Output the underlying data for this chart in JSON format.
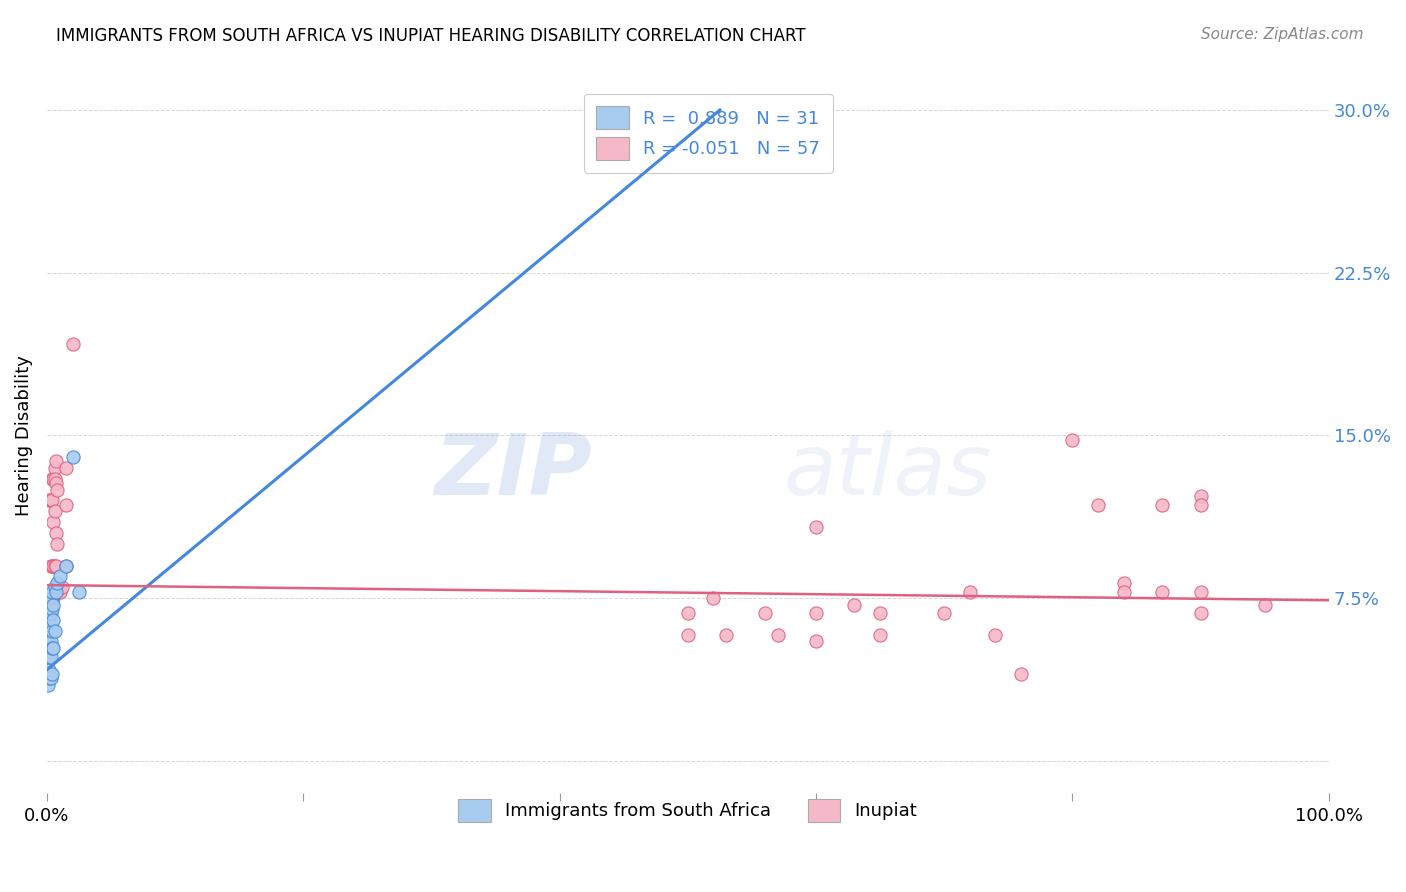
{
  "title": "IMMIGRANTS FROM SOUTH AFRICA VS INUPIAT HEARING DISABILITY CORRELATION CHART",
  "source": "Source: ZipAtlas.com",
  "ylabel": "Hearing Disability",
  "yticks": [
    0.0,
    0.075,
    0.15,
    0.225,
    0.3
  ],
  "ytick_labels": [
    "",
    "7.5%",
    "15.0%",
    "22.5%",
    "30.0%"
  ],
  "xlim": [
    0.0,
    1.0
  ],
  "ylim": [
    -0.015,
    0.315
  ],
  "legend_r1_black": "R = ",
  "legend_r1_blue": "0.889",
  "legend_r1_n": "  N = ",
  "legend_r1_nval": "31",
  "legend_r2_black": "R = ",
  "legend_r2_blue": "-0.051",
  "legend_r2_n": "  N = ",
  "legend_r2_nval": "57",
  "color_blue": "#a8ccf0",
  "color_pink": "#f5b8c8",
  "line_blue": "#4488dd",
  "line_pink": "#e06080",
  "watermark_zip": "ZIP",
  "watermark_atlas": "atlas",
  "blue_scatter": [
    [
      0.001,
      0.035
    ],
    [
      0.001,
      0.04
    ],
    [
      0.002,
      0.038
    ],
    [
      0.002,
      0.042
    ],
    [
      0.002,
      0.048
    ],
    [
      0.002,
      0.055
    ],
    [
      0.002,
      0.06
    ],
    [
      0.002,
      0.065
    ],
    [
      0.003,
      0.038
    ],
    [
      0.003,
      0.048
    ],
    [
      0.003,
      0.055
    ],
    [
      0.003,
      0.062
    ],
    [
      0.003,
      0.068
    ],
    [
      0.003,
      0.075
    ],
    [
      0.004,
      0.04
    ],
    [
      0.004,
      0.052
    ],
    [
      0.004,
      0.06
    ],
    [
      0.004,
      0.07
    ],
    [
      0.004,
      0.078
    ],
    [
      0.005,
      0.052
    ],
    [
      0.005,
      0.065
    ],
    [
      0.005,
      0.072
    ],
    [
      0.006,
      0.06
    ],
    [
      0.006,
      0.08
    ],
    [
      0.007,
      0.078
    ],
    [
      0.008,
      0.082
    ],
    [
      0.01,
      0.085
    ],
    [
      0.015,
      0.09
    ],
    [
      0.02,
      0.14
    ],
    [
      0.025,
      0.078
    ],
    [
      0.476,
      0.275
    ]
  ],
  "pink_scatter": [
    [
      0.002,
      0.12
    ],
    [
      0.003,
      0.12
    ],
    [
      0.003,
      0.09
    ],
    [
      0.003,
      0.075
    ],
    [
      0.003,
      0.06
    ],
    [
      0.004,
      0.13
    ],
    [
      0.004,
      0.12
    ],
    [
      0.004,
      0.09
    ],
    [
      0.004,
      0.075
    ],
    [
      0.005,
      0.13
    ],
    [
      0.005,
      0.11
    ],
    [
      0.005,
      0.09
    ],
    [
      0.005,
      0.075
    ],
    [
      0.006,
      0.135
    ],
    [
      0.006,
      0.13
    ],
    [
      0.006,
      0.115
    ],
    [
      0.006,
      0.09
    ],
    [
      0.006,
      0.078
    ],
    [
      0.007,
      0.138
    ],
    [
      0.007,
      0.128
    ],
    [
      0.007,
      0.105
    ],
    [
      0.007,
      0.09
    ],
    [
      0.008,
      0.125
    ],
    [
      0.008,
      0.1
    ],
    [
      0.009,
      0.078
    ],
    [
      0.01,
      0.078
    ],
    [
      0.012,
      0.08
    ],
    [
      0.015,
      0.135
    ],
    [
      0.015,
      0.118
    ],
    [
      0.015,
      0.09
    ],
    [
      0.02,
      0.192
    ],
    [
      0.5,
      0.068
    ],
    [
      0.5,
      0.058
    ],
    [
      0.52,
      0.075
    ],
    [
      0.53,
      0.058
    ],
    [
      0.56,
      0.068
    ],
    [
      0.57,
      0.058
    ],
    [
      0.6,
      0.108
    ],
    [
      0.6,
      0.068
    ],
    [
      0.6,
      0.055
    ],
    [
      0.63,
      0.072
    ],
    [
      0.65,
      0.068
    ],
    [
      0.65,
      0.058
    ],
    [
      0.7,
      0.068
    ],
    [
      0.72,
      0.078
    ],
    [
      0.74,
      0.058
    ],
    [
      0.76,
      0.04
    ],
    [
      0.8,
      0.148
    ],
    [
      0.82,
      0.118
    ],
    [
      0.84,
      0.082
    ],
    [
      0.84,
      0.078
    ],
    [
      0.87,
      0.118
    ],
    [
      0.87,
      0.078
    ],
    [
      0.9,
      0.122
    ],
    [
      0.9,
      0.118
    ],
    [
      0.9,
      0.078
    ],
    [
      0.9,
      0.068
    ],
    [
      0.95,
      0.072
    ]
  ],
  "blue_line": [
    [
      0.0,
      0.042
    ],
    [
      0.525,
      0.3
    ]
  ],
  "pink_line": [
    [
      0.0,
      0.081
    ],
    [
      1.0,
      0.074
    ]
  ]
}
